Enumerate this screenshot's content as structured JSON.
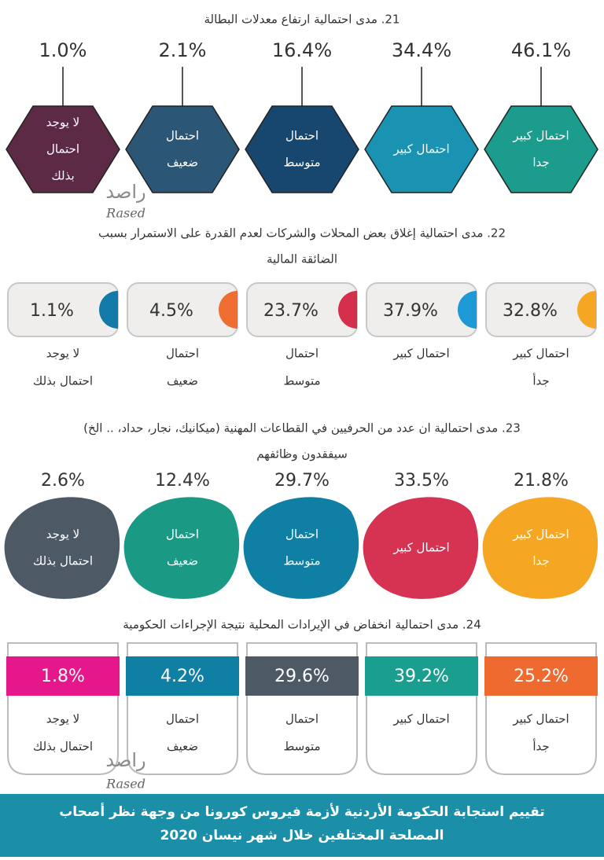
{
  "watermark": {
    "arabic": "راصد",
    "latin": "Rased"
  },
  "sections": [
    {
      "title": [
        "21. مدى احتمالية ارتفاع معدلات البطالة"
      ],
      "items": [
        {
          "label": [
            "احتمال كبير",
            "جدا"
          ],
          "value": "46.1%",
          "color": "#1b9c8c"
        },
        {
          "label": [
            "احتمال كبير"
          ],
          "value": "34.4%",
          "color": "#1a93b2"
        },
        {
          "label": [
            "احتمال",
            "متوسط"
          ],
          "value": "16.4%",
          "color": "#17466f"
        },
        {
          "label": [
            "احتمال",
            "ضعيف"
          ],
          "value": "2.1%",
          "color": "#2c5675"
        },
        {
          "label": [
            "لا يوجد",
            "احتمال",
            "بذلك"
          ],
          "value": "1.0%",
          "color": "#5d2a46"
        }
      ]
    },
    {
      "title": [
        "22. مدى احتمالية إغلاق بعض المحلات والشركات لعدم القدرة على الاستمرار بسبب",
        "الضائقة المالية"
      ],
      "items": [
        {
          "label": [
            "احتمال كبير",
            "جدأ"
          ],
          "value": "32.8%",
          "color": "#f5a623"
        },
        {
          "label": [
            "احتمال كبير"
          ],
          "value": "37.9%",
          "color": "#1d9ad6"
        },
        {
          "label": [
            "احتمال",
            "متوسط"
          ],
          "value": "23.7%",
          "color": "#d62f4c"
        },
        {
          "label": [
            "احتمال",
            "ضعيف"
          ],
          "value": "4.5%",
          "color": "#ef6d31"
        },
        {
          "label": [
            "لا يوجد",
            "احتمال بذلك"
          ],
          "value": "1.1%",
          "color": "#127aa8"
        }
      ]
    },
    {
      "title": [
        "23. مدى احتمالية ان عدد من الحرفيين في القطاعات المهنية (ميكانيك، نجار، حداد، .. الخ)",
        "سيفقدون وظائفهم"
      ],
      "items": [
        {
          "label": [
            "احتمال كبير",
            "جدا"
          ],
          "value": "21.8%",
          "color": "#f5a622"
        },
        {
          "label": [
            "احتمال كبير"
          ],
          "value": "33.5%",
          "color": "#d63352"
        },
        {
          "label": [
            "احتمال",
            "متوسط"
          ],
          "value": "29.7%",
          "color": "#0f7fa3"
        },
        {
          "label": [
            "احتمال",
            "ضعيف"
          ],
          "value": "12.4%",
          "color": "#1a9985"
        },
        {
          "label": [
            "لا يوجد",
            "احتمال بذلك"
          ],
          "value": "2.6%",
          "color": "#4e5966"
        }
      ]
    },
    {
      "title": [
        "24. مدى احتمالية انخفاض في الإيرادات المحلية نتيجة الإجراءات الحكومية"
      ],
      "items": [
        {
          "label": [
            "احتمال كبير",
            "جدأ"
          ],
          "value": "25.2%",
          "color": "#ee6a2f"
        },
        {
          "label": [
            "احتمال كبير"
          ],
          "value": "39.2%",
          "color": "#1a9e8f"
        },
        {
          "label": [
            "احتمال",
            "متوسط"
          ],
          "value": "29.6%",
          "color": "#4e5966"
        },
        {
          "label": [
            "احتمال",
            "ضعيف"
          ],
          "value": "4.2%",
          "color": "#0f7fa3"
        },
        {
          "label": [
            "لا يوجد",
            "احتمال بذلك"
          ],
          "value": "1.8%",
          "color": "#e6178a"
        }
      ]
    }
  ],
  "footer": [
    "تقييم استجابة الحكومة الأردنية لأزمة فيروس كورونا من وجهة نظر أصحاب",
    "المصلحة المختلفين خلال شهر نيسان 2020"
  ]
}
